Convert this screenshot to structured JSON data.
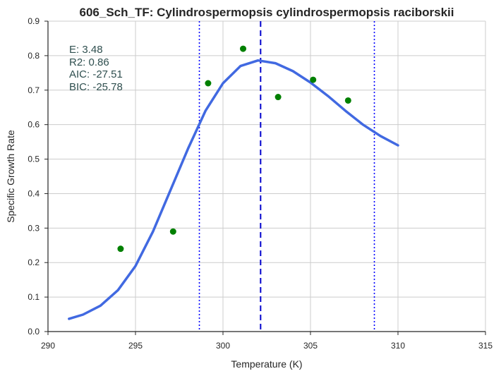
{
  "chart_data": {
    "type": "line",
    "title": "606_Sch_TF: Cylindrospermopsis cylindrospermopsis raciborskii",
    "xlabel": "Temperature (K)",
    "ylabel": "Specific Growth Rate",
    "xlim": [
      290,
      315
    ],
    "ylim": [
      0,
      0.9
    ],
    "xticks": [
      "290",
      "295",
      "300",
      "305",
      "310",
      "315"
    ],
    "yticks": [
      "0.0",
      "0.1",
      "0.2",
      "0.3",
      "0.4",
      "0.5",
      "0.6",
      "0.7",
      "0.8",
      "0.9"
    ],
    "grid": true,
    "annotations": [
      "E:  3.48",
      "R2:  0.86",
      "AIC: -27.51",
      "BIC: -25.78"
    ],
    "observed": {
      "x": [
        294.15,
        297.15,
        299.15,
        301.15,
        303.15,
        305.15,
        307.15
      ],
      "y": [
        0.24,
        0.29,
        0.72,
        0.82,
        0.68,
        0.73,
        0.67
      ],
      "color": "#008000"
    },
    "fit": {
      "x": [
        291.2,
        292,
        293,
        294,
        295,
        296,
        297,
        298,
        299,
        300,
        301,
        302,
        303,
        304,
        305,
        306,
        307,
        308,
        309,
        310
      ],
      "y": [
        0.037,
        0.049,
        0.075,
        0.12,
        0.19,
        0.29,
        0.41,
        0.53,
        0.64,
        0.72,
        0.77,
        0.786,
        0.778,
        0.755,
        0.722,
        0.683,
        0.64,
        0.6,
        0.567,
        0.54
      ],
      "color": "#4169e1"
    },
    "vlines": [
      {
        "x": 302.15,
        "style": "dashed",
        "color": "#0000cd"
      },
      {
        "x": 298.65,
        "style": "dotted",
        "color": "#0000ff"
      },
      {
        "x": 308.65,
        "style": "dotted",
        "color": "#0000ff"
      }
    ]
  }
}
